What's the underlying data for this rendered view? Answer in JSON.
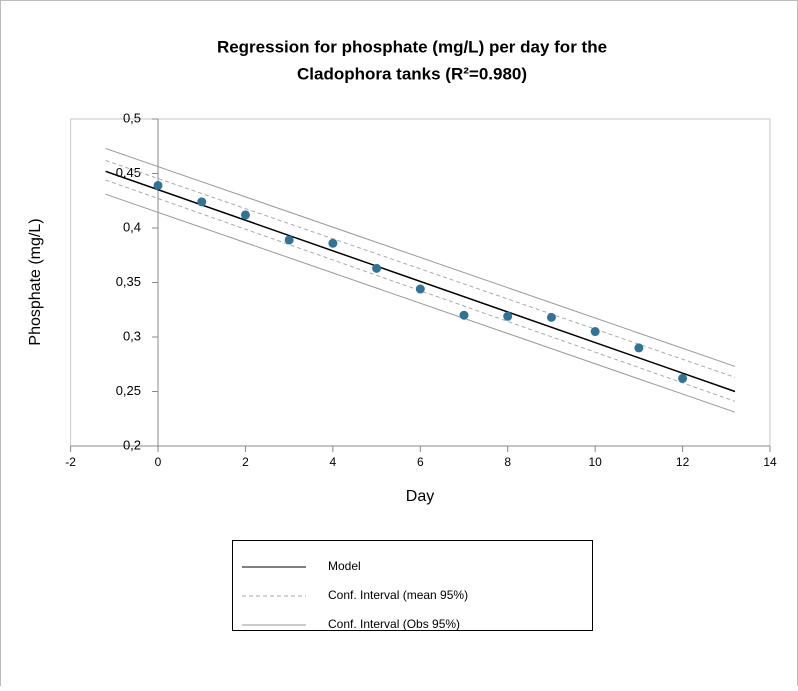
{
  "chart_data": {
    "type": "scatter",
    "title": [
      "Regression for phosphate (mg/L) per day for the",
      "Cladophora tanks (R²=0.980)"
    ],
    "xlabel": "Day",
    "ylabel": "Phosphate (mg/L)",
    "xlim": [
      -2,
      14
    ],
    "xticks": [
      -2,
      0,
      2,
      4,
      6,
      8,
      10,
      12,
      14
    ],
    "ylim": [
      0.2,
      0.5
    ],
    "yticks": [
      {
        "value": 0.2,
        "label": "0,2"
      },
      {
        "value": 0.25,
        "label": "0,25"
      },
      {
        "value": 0.3,
        "label": "0,3"
      },
      {
        "value": 0.35,
        "label": "0,35"
      },
      {
        "value": 0.4,
        "label": "0,4"
      },
      {
        "value": 0.45,
        "label": "0,45"
      },
      {
        "value": 0.5,
        "label": "0,5"
      }
    ],
    "points": {
      "color": "#2f7396",
      "x": [
        0,
        1,
        2,
        3,
        4,
        5,
        6,
        7,
        8,
        9,
        10,
        11,
        12
      ],
      "values": [
        0.439,
        0.424,
        0.412,
        0.389,
        0.386,
        0.363,
        0.344,
        0.32,
        0.319,
        0.318,
        0.305,
        0.29,
        0.262
      ]
    },
    "series": [
      {
        "name": "Model",
        "color": "#000000",
        "style": "solid",
        "lines": [
          {
            "x": [
              -1.2,
              13.2
            ],
            "values": [
              0.452,
              0.25
            ]
          }
        ]
      },
      {
        "name": "Conf. Interval (mean 95%)",
        "color": "#aaaaaa",
        "style": "dashed",
        "lines": [
          {
            "x": [
              -1.2,
              13.2
            ],
            "values": [
              0.462,
              0.263
            ]
          },
          {
            "x": [
              -1.2,
              13.2
            ],
            "values": [
              0.444,
              0.241
            ]
          }
        ]
      },
      {
        "name": "Conf. Interval (Obs 95%)",
        "color": "#999999",
        "style": "solid",
        "lines": [
          {
            "x": [
              -1.2,
              13.2
            ],
            "values": [
              0.473,
              0.273
            ]
          },
          {
            "x": [
              -1.2,
              13.2
            ],
            "values": [
              0.431,
              0.231
            ]
          }
        ]
      }
    ]
  }
}
